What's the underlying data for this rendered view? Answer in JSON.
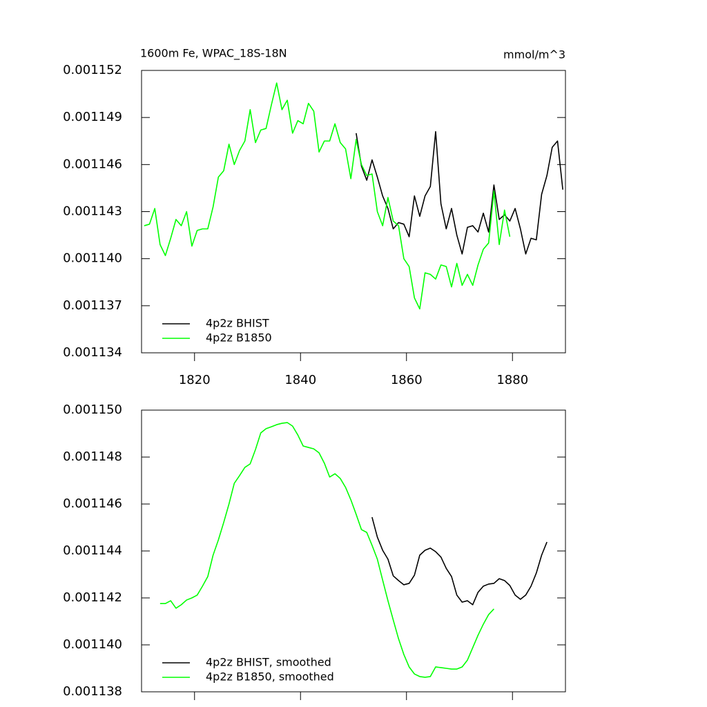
{
  "chart_data": [
    {
      "type": "line",
      "title": "1600m Fe, WPAC_18S-18N",
      "units": "mmol/m^3",
      "xlim": [
        1810,
        1890
      ],
      "xticks": [
        1820,
        1840,
        1860,
        1880
      ],
      "xtick_labels": true,
      "ylim": [
        0.001134,
        0.001152
      ],
      "yticks": [
        0.001134,
        0.001137,
        {
          "value": 0.00114,
          "label": "0.001140"
        },
        0.001143,
        0.001146,
        0.001149,
        0.001152
      ],
      "legend": "lower left",
      "series": [
        {
          "name": "4p2z BHIST",
          "color": "#000000",
          "x": [
            1850.5,
            1851.5,
            1852.5,
            1853.5,
            1854.5,
            1855.5,
            1856.5,
            1857.5,
            1858.5,
            1859.5,
            1860.5,
            1861.5,
            1862.5,
            1863.5,
            1864.5,
            1865.5,
            1866.5,
            1867.5,
            1868.5,
            1869.5,
            1870.5,
            1871.5,
            1872.5,
            1873.5,
            1874.5,
            1875.5,
            1876.5,
            1877.5,
            1878.5,
            1879.5,
            1880.5,
            1881.5,
            1882.5,
            1883.5,
            1884.5,
            1885.5,
            1886.5,
            1887.5,
            1888.5,
            1889.5
          ],
          "values": [
            0.001148,
            0.0011459,
            0.001145,
            0.0011463,
            0.0011452,
            0.001144,
            0.0011432,
            0.0011419,
            0.0011423,
            0.0011422,
            0.0011414,
            0.001144,
            0.0011427,
            0.001144,
            0.0011446,
            0.0011481,
            0.0011435,
            0.0011419,
            0.0011432,
            0.0011415,
            0.0011403,
            0.001142,
            0.0011421,
            0.0011417,
            0.0011429,
            0.0011417,
            0.0011447,
            0.0011425,
            0.0011428,
            0.0011424,
            0.0011432,
            0.0011419,
            0.0011403,
            0.0011413,
            0.0011412,
            0.0011441,
            0.0011453,
            0.0011471,
            0.0011475,
            0.0011444
          ]
        },
        {
          "name": "4p2z B1850",
          "color": "#00ff00",
          "x": [
            1810.5,
            1811.5,
            1812.5,
            1813.5,
            1814.5,
            1815.5,
            1816.5,
            1817.5,
            1818.5,
            1819.5,
            1820.5,
            1821.5,
            1822.5,
            1823.5,
            1824.5,
            1825.5,
            1826.5,
            1827.5,
            1828.5,
            1829.5,
            1830.5,
            1831.5,
            1832.5,
            1833.5,
            1834.5,
            1835.5,
            1836.5,
            1837.5,
            1838.5,
            1839.5,
            1840.5,
            1841.5,
            1842.5,
            1843.5,
            1844.5,
            1845.5,
            1846.5,
            1847.5,
            1848.5,
            1849.5,
            1850.5,
            1851.5,
            1852.5,
            1853.5,
            1854.5,
            1855.5,
            1856.5,
            1857.5,
            1858.5,
            1859.5,
            1860.5,
            1861.5,
            1862.5,
            1863.5,
            1864.5,
            1865.5,
            1866.5,
            1867.5,
            1868.5,
            1869.5,
            1870.5,
            1871.5,
            1872.5,
            1873.5,
            1874.5,
            1875.5,
            1876.5,
            1877.5,
            1878.5,
            1879.5
          ],
          "values": [
            0.0011421,
            0.0011422,
            0.0011432,
            0.0011409,
            0.0011402,
            0.0011413,
            0.0011425,
            0.0011421,
            0.001143,
            0.0011408,
            0.0011418,
            0.0011419,
            0.0011419,
            0.0011433,
            0.0011452,
            0.0011456,
            0.0011473,
            0.001146,
            0.0011469,
            0.0011475,
            0.0011495,
            0.0011474,
            0.0011482,
            0.0011483,
            0.0011498,
            0.0011512,
            0.0011495,
            0.0011501,
            0.001148,
            0.0011488,
            0.0011486,
            0.0011499,
            0.0011494,
            0.0011468,
            0.0011475,
            0.0011475,
            0.0011486,
            0.0011474,
            0.001147,
            0.0011451,
            0.0011476,
            0.001146,
            0.0011453,
            0.0011454,
            0.001143,
            0.0011421,
            0.0011439,
            0.0011424,
            0.0011421,
            0.00114,
            0.0011395,
            0.0011375,
            0.0011368,
            0.0011391,
            0.001139,
            0.0011387,
            0.0011396,
            0.0011395,
            0.0011382,
            0.0011397,
            0.0011383,
            0.001139,
            0.0011383,
            0.0011396,
            0.0011406,
            0.001141,
            0.0011443,
            0.0011409,
            0.0011431,
            0.0011414
          ]
        }
      ]
    },
    {
      "type": "line",
      "xlim": [
        1810,
        1890
      ],
      "xticks": [
        1820,
        1840,
        1860,
        1880
      ],
      "xtick_labels": false,
      "ylim": [
        0.001138,
        0.00115
      ],
      "yticks": [
        0.001138,
        {
          "value": 0.00114,
          "label": "0.001140"
        },
        0.001142,
        0.001144,
        0.001146,
        0.001148,
        {
          "value": 0.00115,
          "label": "0.001150"
        }
      ],
      "legend": "lower left",
      "series": [
        {
          "name": "4p2z BHIST, smoothed",
          "color": "#000000",
          "x": [
            1853.5,
            1854.5,
            1855.5,
            1856.5,
            1857.5,
            1858.5,
            1859.5,
            1860.5,
            1861.5,
            1862.5,
            1863.5,
            1864.5,
            1865.5,
            1866.5,
            1867.5,
            1868.5,
            1869.5,
            1870.5,
            1871.5,
            1872.5,
            1873.5,
            1874.5,
            1875.5,
            1876.5,
            1877.5,
            1878.5,
            1879.5,
            1880.5,
            1881.5,
            1882.5,
            1883.5,
            1884.5,
            1885.5,
            1886.5
          ],
          "values": [
            0.00114544,
            0.00114459,
            0.00114403,
            0.00114365,
            0.00114294,
            0.00114274,
            0.00114256,
            0.00114262,
            0.00114297,
            0.00114382,
            0.00114403,
            0.00114412,
            0.00114397,
            0.00114374,
            0.00114326,
            0.00114291,
            0.00114212,
            0.00114182,
            0.00114188,
            0.00114171,
            0.00114224,
            0.0011425,
            0.00114259,
            0.00114262,
            0.00114282,
            0.00114274,
            0.00114253,
            0.00114212,
            0.00114194,
            0.00114212,
            0.0011425,
            0.00114306,
            0.00114382,
            0.00114438
          ]
        },
        {
          "name": "4p2z B1850, smoothed",
          "color": "#00ff00",
          "x": [
            1813.5,
            1814.5,
            1815.5,
            1816.5,
            1817.5,
            1818.5,
            1819.5,
            1820.5,
            1821.5,
            1822.5,
            1823.5,
            1824.5,
            1825.5,
            1826.5,
            1827.5,
            1828.5,
            1829.5,
            1830.5,
            1831.5,
            1832.5,
            1833.5,
            1834.5,
            1835.5,
            1836.5,
            1837.5,
            1838.5,
            1839.5,
            1840.5,
            1841.5,
            1842.5,
            1843.5,
            1844.5,
            1845.5,
            1846.5,
            1847.5,
            1848.5,
            1849.5,
            1850.5,
            1851.5,
            1852.5,
            1853.5,
            1854.5,
            1855.5,
            1856.5,
            1857.5,
            1858.5,
            1859.5,
            1860.5,
            1861.5,
            1862.5,
            1863.5,
            1864.5,
            1865.5,
            1866.5,
            1867.5,
            1868.5,
            1869.5,
            1870.5,
            1871.5,
            1872.5,
            1873.5,
            1874.5,
            1875.5,
            1876.5
          ],
          "values": [
            0.00114176,
            0.00114176,
            0.00114188,
            0.00114156,
            0.00114171,
            0.00114191,
            0.001142,
            0.00114212,
            0.0011425,
            0.00114291,
            0.00114382,
            0.00114447,
            0.00114521,
            0.001146,
            0.00114688,
            0.00114721,
            0.00114756,
            0.00114771,
            0.00114832,
            0.00114903,
            0.00114921,
            0.00114929,
            0.00114938,
            0.00114944,
            0.00114947,
            0.00114932,
            0.00114894,
            0.00114847,
            0.00114841,
            0.00114835,
            0.00114818,
            0.00114774,
            0.00114715,
            0.00114729,
            0.00114709,
            0.00114671,
            0.00114618,
            0.00114556,
            0.00114491,
            0.00114479,
            0.00114424,
            0.00114365,
            0.00114276,
            0.00114188,
            0.00114106,
            0.00114026,
            0.00113959,
            0.00113906,
            0.00113876,
            0.00113865,
            0.00113862,
            0.00113865,
            0.00113906,
            0.00113903,
            0.001139,
            0.00113897,
            0.00113897,
            0.00113906,
            0.00113935,
            0.00113988,
            0.00114041,
            0.00114088,
            0.00114129,
            0.00114153
          ]
        }
      ]
    }
  ]
}
